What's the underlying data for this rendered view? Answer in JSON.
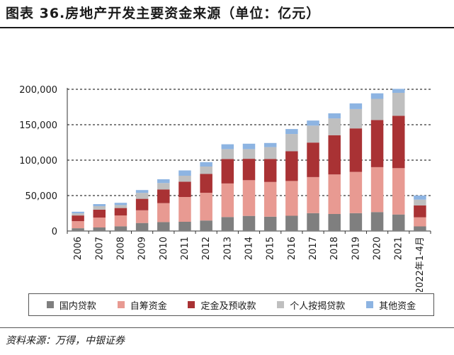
{
  "title": "图表 36.房地产开发主要资金来源（单位：亿元）",
  "source": "资料来源：万得，中银证券",
  "chart_data": {
    "type": "bar",
    "stacked": true,
    "categories": [
      "2006",
      "2007",
      "2008",
      "2009",
      "2010",
      "2011",
      "2012",
      "2013",
      "2014",
      "2015",
      "2016",
      "2017",
      "2018",
      "2019",
      "2020",
      "2021",
      "2022年1-4月"
    ],
    "ylim": [
      0,
      200000
    ],
    "yticks": [
      0,
      50000,
      100000,
      150000,
      200000
    ],
    "ytick_labels": [
      "0",
      "50,000",
      "100,000",
      "150,000",
      "200,000"
    ],
    "grid": true,
    "legend_position": "bottom",
    "series": [
      {
        "name": "国内贷款",
        "color": "#7f7f7f",
        "values": [
          3900,
          5000,
          6600,
          11300,
          12600,
          13000,
          14800,
          19700,
          21300,
          20200,
          21500,
          25200,
          24000,
          25200,
          26700,
          23300,
          6500
        ]
      },
      {
        "name": "自筹资金",
        "color": "#e89a92",
        "values": [
          10000,
          14000,
          15300,
          17900,
          26700,
          35000,
          39100,
          47400,
          50400,
          49000,
          49100,
          50900,
          55800,
          58200,
          63400,
          65400,
          12800
        ]
      },
      {
        "name": "定金及预收款",
        "color": "#a93234",
        "values": [
          8000,
          11000,
          10500,
          16200,
          19200,
          21600,
          26600,
          34500,
          30200,
          32500,
          41900,
          48700,
          55400,
          61400,
          66500,
          73900,
          16700
        ]
      },
      {
        "name": "个人按揭贷款",
        "color": "#bfbfbf",
        "values": [
          3000,
          5000,
          4200,
          8400,
          9200,
          8400,
          10500,
          14000,
          13700,
          16700,
          24400,
          23900,
          23700,
          27300,
          29900,
          32400,
          8300
        ]
      },
      {
        "name": "其他资金",
        "color": "#8db4e2",
        "values": [
          2300,
          3000,
          3200,
          4000,
          5300,
          7500,
          6200,
          6800,
          7600,
          5800,
          7000,
          7200,
          7200,
          8000,
          7800,
          5600,
          5800
        ]
      }
    ]
  }
}
